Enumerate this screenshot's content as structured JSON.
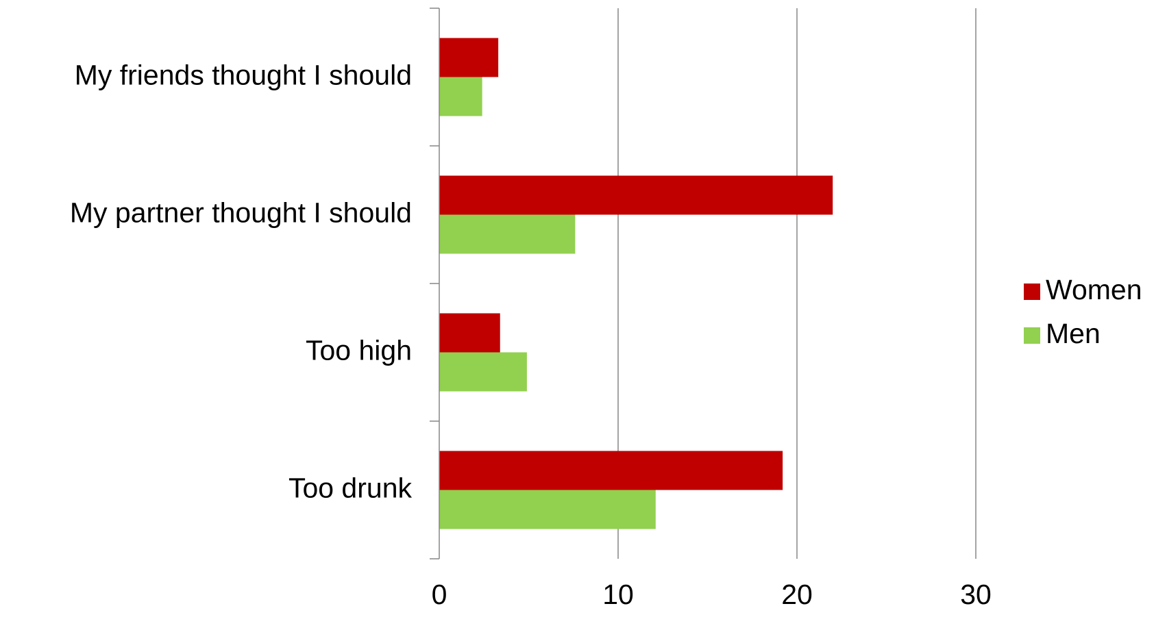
{
  "chart_data": {
    "type": "bar",
    "orientation": "horizontal",
    "categories": [
      "My friends thought I should",
      "My partner thought I should",
      "Too high",
      "Too drunk"
    ],
    "series": [
      {
        "name": "Women",
        "color": "#C00000",
        "values": [
          3.3,
          22.0,
          3.4,
          19.2
        ]
      },
      {
        "name": "Men",
        "color": "#92D050",
        "values": [
          2.4,
          7.6,
          4.9,
          12.1
        ]
      }
    ],
    "xlim": [
      0,
      30
    ],
    "xticks": [
      0,
      10,
      20,
      30
    ],
    "xtick_labels": [
      "0",
      "10",
      "20",
      "30"
    ],
    "grid": true,
    "legend_position": "right",
    "title": "",
    "xlabel": "",
    "ylabel": ""
  }
}
